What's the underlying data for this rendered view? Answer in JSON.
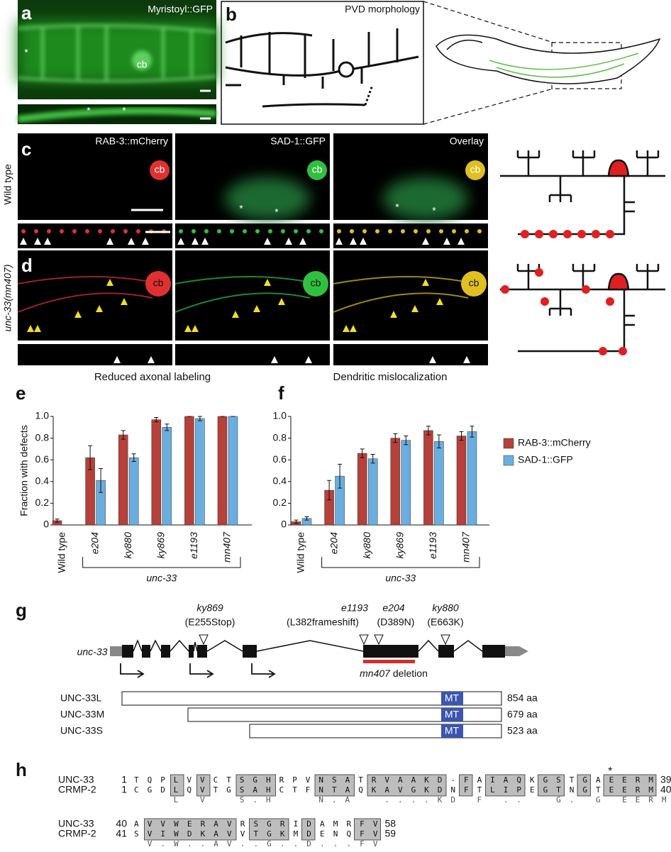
{
  "panels": {
    "a": {
      "label": "a",
      "title": "Myristoyl::GFP",
      "annotations": [
        "*",
        "cb",
        "*",
        "*"
      ]
    },
    "b": {
      "label": "b",
      "title": "PVD morphology"
    },
    "c": {
      "label": "c",
      "row_label": "Wild type",
      "columns": [
        "RAB-3::mCherry",
        "SAD-1::GFP",
        "Overlay"
      ],
      "annotations": [
        "cb",
        "cb",
        "cb",
        "*",
        "*",
        "*",
        "*"
      ]
    },
    "d": {
      "label": "d",
      "row_label": "unc-33(mn407)",
      "annotations": [
        "cb",
        "cb",
        "cb"
      ]
    },
    "e": {
      "label": "e"
    },
    "f": {
      "label": "f"
    },
    "g": {
      "label": "g",
      "gene": "unc-33",
      "mutations": [
        {
          "allele": "ky869",
          "change": "(E255Stop)"
        },
        {
          "allele": "e1193",
          "change": "(L382frameshift)"
        },
        {
          "allele": "e204",
          "change": "(D389N)"
        },
        {
          "allele": "ky880",
          "change": "(E663K)"
        }
      ],
      "deletion": {
        "allele": "mn407",
        "label": "deletion"
      },
      "isoforms": [
        {
          "name": "UNC-33L",
          "domain": "MT",
          "length": "854 aa"
        },
        {
          "name": "UNC-33M",
          "domain": "MT",
          "length": "679 aa"
        },
        {
          "name": "UNC-33S",
          "domain": "MT",
          "length": "523 aa"
        }
      ]
    },
    "h": {
      "label": "h",
      "marker": "*",
      "blocks": [
        {
          "rows": [
            {
              "name": "UNC-33",
              "start": 1,
              "seq": "TQPLVVCTSGHRPVNSATRVAAKD-FAIAQKGSTGAEERM",
              "end": 39
            },
            {
              "name": "CRMP-2",
              "start": 1,
              "seq": "CGDLQVTGSAHCTFNTAQKAVGKDNFTLIPEGTNGTEERM",
              "end": 40
            }
          ],
          "consensus": "   L V  S.H   N.A  ....KD F ..  G. G EERM"
        },
        {
          "rows": [
            {
              "name": "UNC-33",
              "start": 40,
              "seq": "AVVWERAVRSGRIDAMRFV",
              "end": 58
            },
            {
              "name": "CRMP-2",
              "start": 41,
              "seq": "SVIWDKAVVTGKMDENQFV",
              "end": 59
            }
          ],
          "consensus": " V.W..AV..G..D...FV"
        }
      ]
    }
  },
  "chart_data": [
    {
      "type": "bar",
      "title": "Reduced axonal labeling",
      "ylabel": "Fraction with defects",
      "group_label": "unc-33",
      "categories": [
        "Wild type",
        "e204",
        "ky880",
        "ky869",
        "e1193",
        "mn407"
      ],
      "series": [
        {
          "color": "#b5413a",
          "values": [
            0.04,
            0.62,
            0.83,
            0.97,
            1.0,
            1.0
          ],
          "errors": [
            0.015,
            0.11,
            0.04,
            0.02,
            0,
            0
          ]
        },
        {
          "color": "#6aaee0",
          "values": [
            0,
            0.41,
            0.62,
            0.9,
            0.98,
            1.0
          ],
          "errors": [
            0,
            0.11,
            0.035,
            0.03,
            0.02,
            0
          ]
        }
      ],
      "ylim": [
        0,
        1
      ],
      "yticks": [
        0,
        0.2,
        0.4,
        0.6,
        0.8,
        {
          "value": 1,
          "label": "1.0"
        }
      ]
    },
    {
      "type": "bar",
      "title": "Dendritic mislocalization",
      "group_label": "unc-33",
      "legend": "right",
      "categories": [
        "Wild type",
        "e204",
        "ky880",
        "ky869",
        "e1193",
        "mn407"
      ],
      "series": [
        {
          "name": "RAB-3::mCherry",
          "color": "#b5413a",
          "values": [
            0.03,
            0.32,
            0.66,
            0.8,
            0.87,
            0.82
          ],
          "errors": [
            0.015,
            0.09,
            0.04,
            0.04,
            0.04,
            0.04
          ]
        },
        {
          "name": "SAD-1::GFP",
          "color": "#6aaee0",
          "values": [
            0.06,
            0.45,
            0.61,
            0.78,
            0.77,
            0.86
          ],
          "errors": [
            0.015,
            0.11,
            0.04,
            0.04,
            0.06,
            0.05
          ]
        }
      ],
      "ylim": [
        0,
        1
      ],
      "yticks": [
        0,
        0.2,
        0.4,
        0.6,
        0.8,
        {
          "value": 1,
          "label": "1.0"
        }
      ]
    }
  ]
}
